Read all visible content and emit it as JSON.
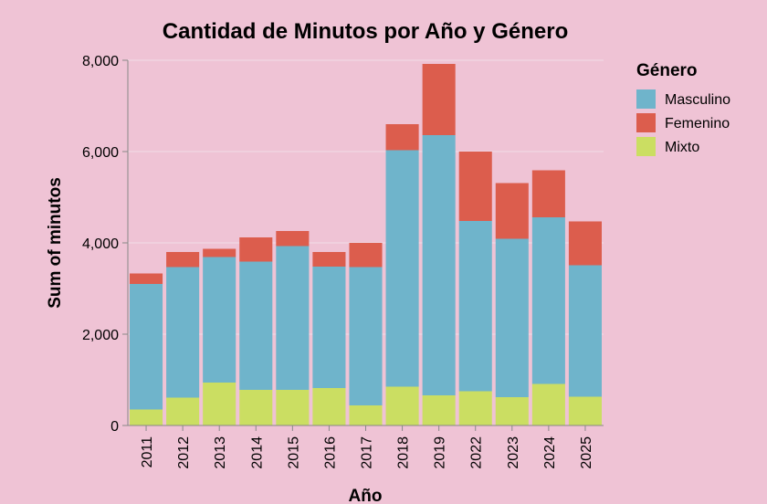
{
  "chart_data": {
    "type": "bar",
    "stacked": true,
    "title": "Cantidad de Minutos por Año y Género",
    "xlabel": "Año",
    "ylabel": "Sum of minutos",
    "ylim": [
      0,
      8000
    ],
    "yticks": [
      0,
      2000,
      4000,
      6000,
      8000
    ],
    "ytick_labels": [
      "0",
      "2,000",
      "4,000",
      "6,000",
      "8,000"
    ],
    "grid": true,
    "legend": {
      "title": "Género",
      "placement": "right"
    },
    "categories": [
      "2011",
      "2012",
      "2013",
      "2014",
      "2015",
      "2016",
      "2017",
      "2018",
      "2019",
      "2022",
      "2023",
      "2024",
      "2025"
    ],
    "series": [
      {
        "name": "Mixto",
        "color": "#cbde62",
        "values": [
          350,
          610,
          940,
          780,
          780,
          820,
          440,
          850,
          660,
          750,
          620,
          910,
          630
        ]
      },
      {
        "name": "Masculino",
        "color": "#6fb4cb",
        "values": [
          2750,
          2860,
          2750,
          2810,
          3150,
          2660,
          3030,
          5180,
          5700,
          3730,
          3470,
          3650,
          2880
        ]
      },
      {
        "name": "Femenino",
        "color": "#dc5d4d",
        "values": [
          230,
          330,
          180,
          530,
          330,
          320,
          530,
          570,
          1560,
          1520,
          1220,
          1030,
          960
        ]
      }
    ],
    "legend_order": [
      "Masculino",
      "Femenino",
      "Mixto"
    ]
  }
}
